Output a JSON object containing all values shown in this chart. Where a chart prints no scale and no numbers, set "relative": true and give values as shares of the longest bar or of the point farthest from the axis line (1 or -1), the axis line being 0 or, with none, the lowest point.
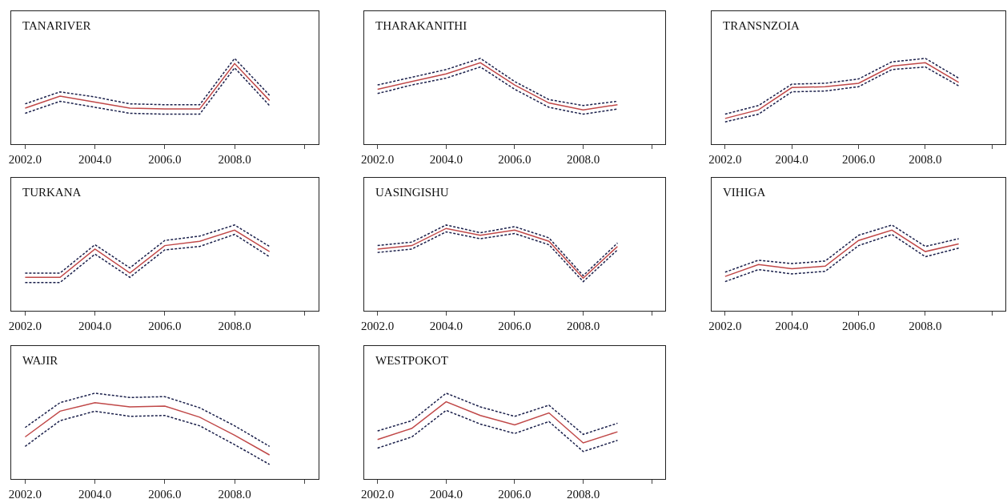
{
  "chart_data": [
    {
      "type": "line",
      "title": "TANARIVER",
      "relative": true,
      "x": [
        2002,
        2003,
        2004,
        2005,
        2006,
        2007,
        2008,
        2009
      ],
      "xlim": [
        2001.6,
        2010.4
      ],
      "xticks": [
        {
          "value": 2002,
          "label": "2002.0"
        },
        {
          "value": 2004,
          "label": "2004.0"
        },
        {
          "value": 2006,
          "label": "2006.0"
        },
        {
          "value": 2008,
          "label": "2008.0"
        },
        {
          "value": 2010,
          "label": null
        }
      ],
      "line_style": "solid",
      "series": [
        {
          "color": "#c04848",
          "values": [
            0.42,
            0.56,
            0.49,
            0.42,
            0.41,
            0.41,
            0.94,
            0.51
          ]
        },
        {
          "color": "#1a1f4a",
          "line_style": "dashed",
          "values": [
            0.36,
            0.5,
            0.43,
            0.36,
            0.35,
            0.35,
            0.89,
            0.45
          ]
        },
        {
          "color": "#1a1f4a",
          "line_style": "dashed",
          "values": [
            0.47,
            0.61,
            0.55,
            0.47,
            0.46,
            0.46,
            1.0,
            0.57
          ]
        }
      ]
    },
    {
      "type": "line",
      "title": "THARAKANITHI",
      "relative": true,
      "x": [
        2002,
        2003,
        2004,
        2005,
        2006,
        2007,
        2008,
        2009
      ],
      "xlim": [
        2001.6,
        2010.4
      ],
      "xticks": [
        {
          "value": 2002,
          "label": "2002.0"
        },
        {
          "value": 2004,
          "label": "2004.0"
        },
        {
          "value": 2006,
          "label": "2006.0"
        },
        {
          "value": 2008,
          "label": "2008.0"
        },
        {
          "value": 2010,
          "label": null
        }
      ],
      "line_style": "solid",
      "series": [
        {
          "color": "#c04848",
          "values": [
            0.64,
            0.73,
            0.82,
            0.95,
            0.69,
            0.48,
            0.4,
            0.46
          ]
        },
        {
          "color": "#1a1f4a",
          "line_style": "dashed",
          "values": [
            0.59,
            0.69,
            0.77,
            0.9,
            0.64,
            0.43,
            0.35,
            0.41
          ]
        },
        {
          "color": "#1a1f4a",
          "line_style": "dashed",
          "values": [
            0.69,
            0.78,
            0.87,
            1.0,
            0.73,
            0.52,
            0.45,
            0.5
          ]
        }
      ]
    },
    {
      "type": "line",
      "title": "TRANSNZOIA",
      "relative": true,
      "x": [
        2002,
        2003,
        2004,
        2005,
        2006,
        2007,
        2008,
        2009
      ],
      "xlim": [
        2001.6,
        2010.4
      ],
      "xticks": [
        {
          "value": 2002,
          "label": "2002.0"
        },
        {
          "value": 2004,
          "label": "2004.0"
        },
        {
          "value": 2006,
          "label": "2006.0"
        },
        {
          "value": 2008,
          "label": "2008.0"
        },
        {
          "value": 2010,
          "label": null
        }
      ],
      "line_style": "solid",
      "series": [
        {
          "color": "#c04848",
          "values": [
            0.3,
            0.4,
            0.66,
            0.67,
            0.71,
            0.91,
            0.95,
            0.72
          ]
        },
        {
          "color": "#1a1f4a",
          "line_style": "dashed",
          "values": [
            0.26,
            0.35,
            0.61,
            0.62,
            0.67,
            0.87,
            0.9,
            0.68
          ]
        },
        {
          "color": "#1a1f4a",
          "line_style": "dashed",
          "values": [
            0.35,
            0.45,
            0.7,
            0.71,
            0.76,
            0.96,
            1.0,
            0.77
          ]
        }
      ]
    },
    {
      "type": "line",
      "title": "TURKANA",
      "relative": true,
      "x": [
        2002,
        2003,
        2004,
        2005,
        2006,
        2007,
        2008,
        2009
      ],
      "xlim": [
        2001.6,
        2010.4
      ],
      "xticks": [
        {
          "value": 2002,
          "label": "2002.0"
        },
        {
          "value": 2004,
          "label": "2004.0"
        },
        {
          "value": 2006,
          "label": "2006.0"
        },
        {
          "value": 2008,
          "label": "2008.0"
        },
        {
          "value": 2010,
          "label": null
        }
      ],
      "line_style": "solid",
      "series": [
        {
          "color": "#c04848",
          "values": [
            0.39,
            0.39,
            0.72,
            0.44,
            0.76,
            0.81,
            0.94,
            0.69
          ]
        },
        {
          "color": "#1a1f4a",
          "line_style": "dashed",
          "values": [
            0.33,
            0.33,
            0.66,
            0.39,
            0.71,
            0.75,
            0.89,
            0.63
          ]
        },
        {
          "color": "#1a1f4a",
          "line_style": "dashed",
          "values": [
            0.44,
            0.44,
            0.77,
            0.5,
            0.82,
            0.87,
            1.0,
            0.75
          ]
        }
      ]
    },
    {
      "type": "line",
      "title": "UASINGISHU",
      "relative": true,
      "x": [
        2002,
        2003,
        2004,
        2005,
        2006,
        2007,
        2008,
        2009
      ],
      "xlim": [
        2001.6,
        2010.4
      ],
      "xticks": [
        {
          "value": 2002,
          "label": "2002.0"
        },
        {
          "value": 2004,
          "label": "2004.0"
        },
        {
          "value": 2006,
          "label": "2006.0"
        },
        {
          "value": 2008,
          "label": "2008.0"
        },
        {
          "value": 2010,
          "label": null
        }
      ],
      "line_style": "solid",
      "series": [
        {
          "color": "#c04848",
          "values": [
            0.72,
            0.76,
            0.96,
            0.88,
            0.94,
            0.81,
            0.38,
            0.75
          ]
        },
        {
          "color": "#1a1f4a",
          "line_style": "dashed",
          "values": [
            0.68,
            0.72,
            0.92,
            0.84,
            0.9,
            0.77,
            0.34,
            0.71
          ]
        },
        {
          "color": "#1a1f4a",
          "line_style": "dashed",
          "values": [
            0.76,
            0.8,
            1.0,
            0.91,
            0.98,
            0.85,
            0.41,
            0.79
          ]
        }
      ]
    },
    {
      "type": "line",
      "title": "VIHIGA",
      "relative": true,
      "x": [
        2002,
        2003,
        2004,
        2005,
        2006,
        2007,
        2008,
        2009
      ],
      "xlim": [
        2001.6,
        2010.4
      ],
      "xticks": [
        {
          "value": 2002,
          "label": "2002.0"
        },
        {
          "value": 2004,
          "label": "2004.0"
        },
        {
          "value": 2006,
          "label": "2006.0"
        },
        {
          "value": 2008,
          "label": "2008.0"
        },
        {
          "value": 2010,
          "label": null
        }
      ],
      "line_style": "solid",
      "series": [
        {
          "color": "#c04848",
          "values": [
            0.4,
            0.54,
            0.49,
            0.52,
            0.82,
            0.94,
            0.69,
            0.78
          ]
        },
        {
          "color": "#1a1f4a",
          "line_style": "dashed",
          "values": [
            0.34,
            0.48,
            0.43,
            0.46,
            0.76,
            0.89,
            0.63,
            0.73
          ]
        },
        {
          "color": "#1a1f4a",
          "line_style": "dashed",
          "values": [
            0.45,
            0.59,
            0.55,
            0.58,
            0.88,
            1.0,
            0.75,
            0.84
          ]
        }
      ]
    },
    {
      "type": "line",
      "title": "WAJIR",
      "relative": true,
      "x": [
        2002,
        2003,
        2004,
        2005,
        2006,
        2007,
        2008,
        2009
      ],
      "xlim": [
        2001.6,
        2010.4
      ],
      "xticks": [
        {
          "value": 2002,
          "label": "2002.0"
        },
        {
          "value": 2004,
          "label": "2004.0"
        },
        {
          "value": 2006,
          "label": "2006.0"
        },
        {
          "value": 2008,
          "label": "2008.0"
        },
        {
          "value": 2010,
          "label": null
        }
      ],
      "line_style": "solid",
      "series": [
        {
          "color": "#c04848",
          "values": [
            0.49,
            0.79,
            0.89,
            0.84,
            0.85,
            0.72,
            0.51,
            0.28
          ]
        },
        {
          "color": "#1a1f4a",
          "line_style": "dashed",
          "values": [
            0.38,
            0.68,
            0.79,
            0.73,
            0.74,
            0.62,
            0.4,
            0.17
          ]
        },
        {
          "color": "#1a1f4a",
          "line_style": "dashed",
          "values": [
            0.6,
            0.89,
            1.0,
            0.95,
            0.96,
            0.83,
            0.62,
            0.38
          ]
        }
      ]
    },
    {
      "type": "line",
      "title": "WESTPOKOT",
      "relative": true,
      "x": [
        2002,
        2003,
        2004,
        2005,
        2006,
        2007,
        2008,
        2009
      ],
      "xlim": [
        2001.6,
        2010.4
      ],
      "xticks": [
        {
          "value": 2002,
          "label": "2002.0"
        },
        {
          "value": 2004,
          "label": "2004.0"
        },
        {
          "value": 2006,
          "label": "2006.0"
        },
        {
          "value": 2008,
          "label": "2008.0"
        },
        {
          "value": 2010,
          "label": null
        }
      ],
      "line_style": "solid",
      "series": [
        {
          "color": "#c04848",
          "values": [
            0.46,
            0.59,
            0.9,
            0.74,
            0.63,
            0.77,
            0.42,
            0.55
          ]
        },
        {
          "color": "#1a1f4a",
          "line_style": "dashed",
          "values": [
            0.36,
            0.49,
            0.8,
            0.64,
            0.53,
            0.67,
            0.32,
            0.45
          ]
        },
        {
          "color": "#1a1f4a",
          "line_style": "dashed",
          "values": [
            0.56,
            0.68,
            1.0,
            0.84,
            0.73,
            0.86,
            0.52,
            0.65
          ]
        }
      ]
    }
  ]
}
